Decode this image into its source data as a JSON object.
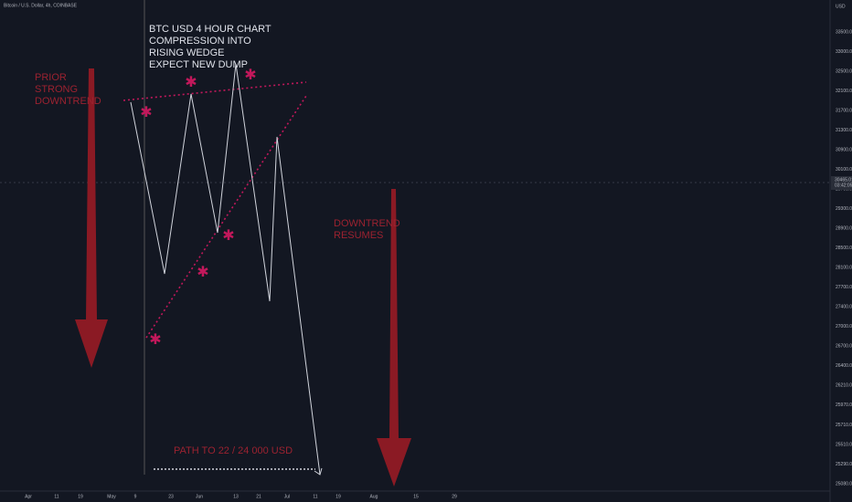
{
  "header": {
    "symbol": "Bitcoin / U.S. Dollar, 4h, COINBASE",
    "currency": "USD"
  },
  "annotations": {
    "title_lines": [
      "BTC USD 4 HOUR CHART",
      "COMPRESSION INTO",
      "RISING WEDGE",
      "EXPECT NEW DUMP"
    ],
    "prior": [
      "PRIOR",
      "STRONG",
      "DOWNTREND"
    ],
    "resumes": [
      "DOWNTREND",
      "RESUMES"
    ],
    "target": "PATH TO 22 / 24 000 USD"
  },
  "price_axis": {
    "labels": [
      "33500.00",
      "33000.00",
      "32500.00",
      "32100.00",
      "31700.00",
      "31300.00",
      "30900.00",
      "30100.00",
      "29700.00",
      "29300.00",
      "28900.00",
      "28500.00",
      "28100.00",
      "27700.00",
      "27400.00",
      "27000.00",
      "26700.00",
      "26400.00",
      "26210.00",
      "25970.00",
      "25710.00",
      "25510.00",
      "25290.00",
      "25080.00"
    ],
    "current": [
      "30465.01",
      "03:42:05"
    ]
  },
  "time_axis": {
    "labels": [
      "Apr",
      "11",
      "19",
      "May",
      "9",
      "23",
      "Jun",
      "13",
      "21",
      "Jul",
      "11",
      "19",
      "Aug",
      "15",
      "29"
    ]
  }
}
